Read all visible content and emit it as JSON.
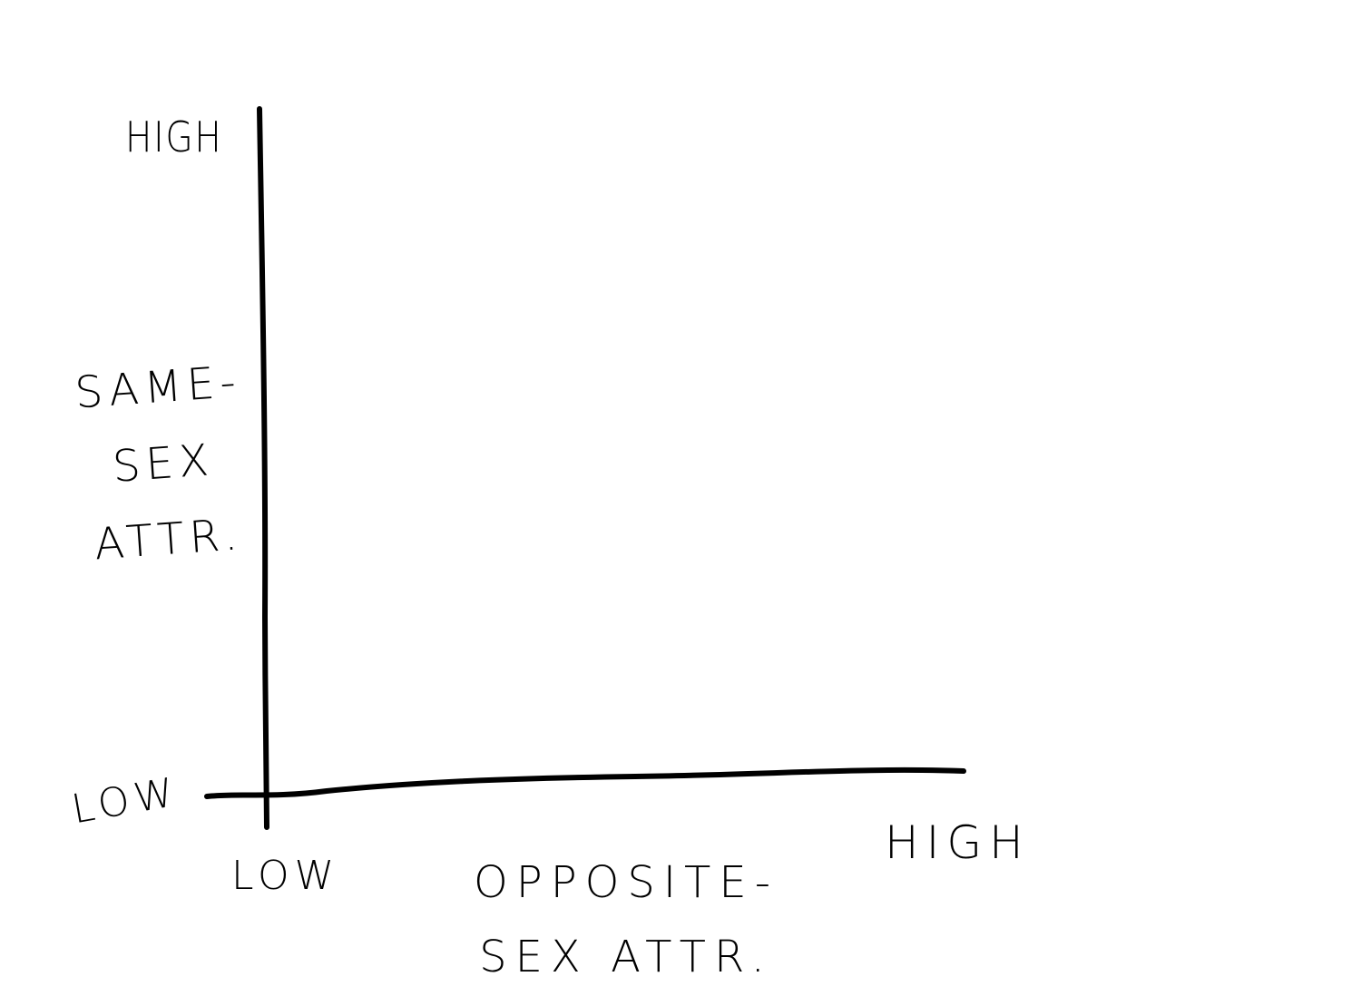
{
  "y_axis": {
    "high_label": "HIGH",
    "low_label": "LOW",
    "title_lines": [
      "SAME-",
      "SEX",
      "ATTR."
    ]
  },
  "x_axis": {
    "low_label": "LOW",
    "high_label": "HIGH",
    "title_lines": [
      "OPPOSITE-",
      "SEX ATTR."
    ]
  },
  "colors": {
    "ink": "#000000",
    "background": "#ffffff"
  }
}
